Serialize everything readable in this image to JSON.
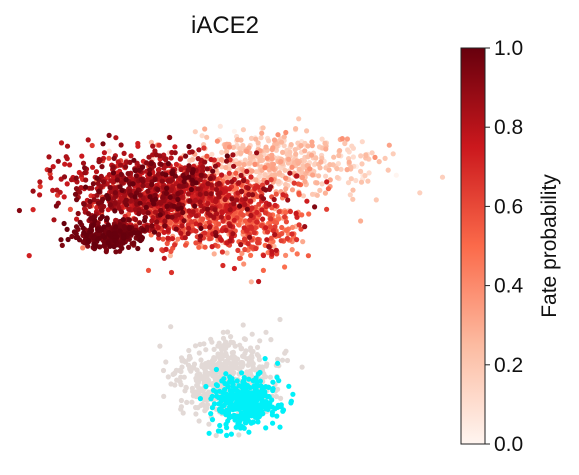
{
  "chart_data": {
    "type": "scatter",
    "title": "iACE2",
    "xlabel": "",
    "ylabel": "",
    "axes_visible": false,
    "grid": false,
    "colormap": [
      "#fff5f0",
      "#fcbba1",
      "#fb6a4a",
      "#cb181d",
      "#67000d"
    ],
    "highlight_color": "#00f0f8",
    "background_cell_color": "#e2d9d6",
    "colorbar": {
      "label": "Fate probability",
      "range": [
        0,
        1
      ],
      "ticks": [
        "0.0",
        "0.2",
        "0.4",
        "0.6",
        "0.8",
        "1.0"
      ],
      "placement": "right"
    },
    "clusters": [
      {
        "role": "high-fate-core",
        "center": [
          0.32,
          0.66
        ],
        "spread": [
          0.11,
          0.05
        ],
        "fate_mean": 0.82,
        "fate_sd": 0.1,
        "count": 900
      },
      {
        "role": "dark-tip",
        "center": [
          0.22,
          0.54
        ],
        "spread": [
          0.04,
          0.02
        ],
        "fate_mean": 0.97,
        "fate_sd": 0.03,
        "count": 260
      },
      {
        "role": "mid-band",
        "center": [
          0.45,
          0.6
        ],
        "spread": [
          0.1,
          0.05
        ],
        "fate_mean": 0.55,
        "fate_sd": 0.15,
        "count": 700
      },
      {
        "role": "upper-arm",
        "center": [
          0.62,
          0.73
        ],
        "spread": [
          0.12,
          0.04
        ],
        "fate_mean": 0.2,
        "fate_sd": 0.08,
        "count": 500
      },
      {
        "role": "right-branch",
        "center": [
          0.6,
          0.55
        ],
        "spread": [
          0.05,
          0.05
        ],
        "fate_mean": 0.55,
        "fate_sd": 0.12,
        "count": 160
      },
      {
        "role": "lower-island",
        "center": [
          0.5,
          0.17
        ],
        "spread": [
          0.06,
          0.05
        ],
        "fate_mean": 0.0,
        "fate_sd": 0.0,
        "count": 500
      },
      {
        "role": "target-state",
        "center": [
          0.55,
          0.1
        ],
        "spread": [
          0.04,
          0.035
        ],
        "fate_mean": 1.0,
        "fate_sd": 0.0,
        "count": 350,
        "highlight": true
      }
    ]
  }
}
